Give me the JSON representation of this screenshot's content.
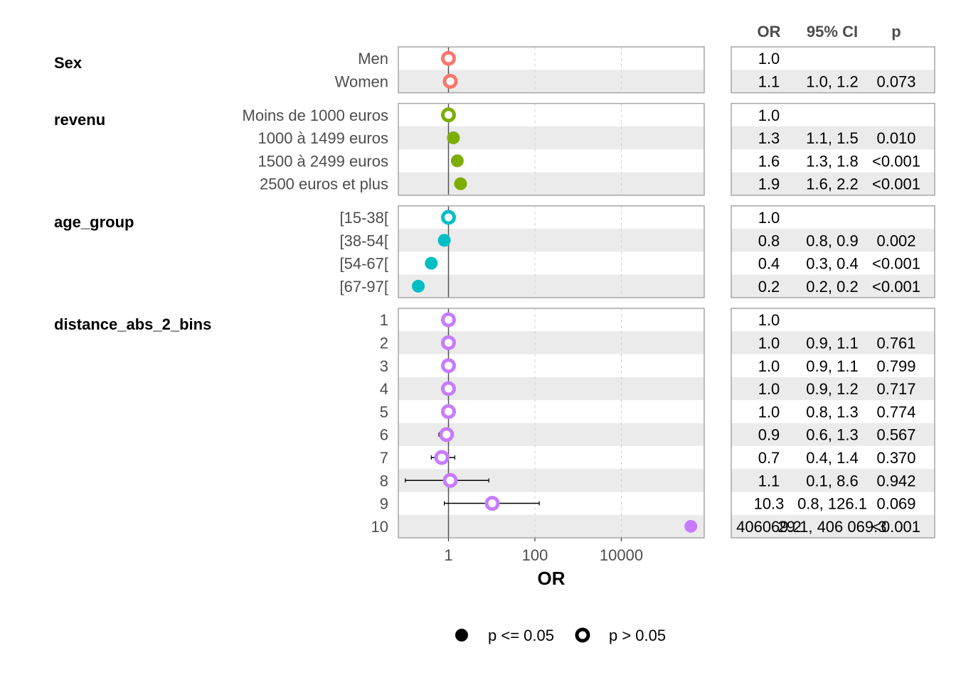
{
  "chart_data": {
    "type": "scatter",
    "subtype": "forest-plot",
    "x_scale": "log10",
    "xlabel": "OR",
    "x_ticks": [
      "1",
      "100",
      "10000"
    ],
    "x_tick_values": [
      1,
      100,
      10000
    ],
    "xlim": [
      0.1,
      1000000
    ],
    "reference_line": 1,
    "grid": "vertical dashed at major ticks",
    "table_headers": {
      "or": "OR",
      "ci": "95% CI",
      "p": "p"
    },
    "colors": {
      "Sex": "#F8766D",
      "revenu": "#7CAE00",
      "age_group": "#00BFC4",
      "distance_abs_2_bins": "#C77CFF"
    },
    "groups": [
      {
        "name": "Sex",
        "rows": [
          {
            "label": "Men",
            "or": 1.0,
            "lo": null,
            "hi": null,
            "or_text": "1.0",
            "ci_text": "",
            "p_text": "",
            "significant": false
          },
          {
            "label": "Women",
            "or": 1.1,
            "lo": 1.0,
            "hi": 1.2,
            "or_text": "1.1",
            "ci_text": "1.0, 1.2",
            "p_text": "0.073",
            "significant": false
          }
        ]
      },
      {
        "name": "revenu",
        "rows": [
          {
            "label": "Moins de 1000 euros",
            "or": 1.0,
            "lo": null,
            "hi": null,
            "or_text": "1.0",
            "ci_text": "",
            "p_text": "",
            "significant": false
          },
          {
            "label": "1000 à 1499 euros",
            "or": 1.3,
            "lo": 1.1,
            "hi": 1.5,
            "or_text": "1.3",
            "ci_text": "1.1, 1.5",
            "p_text": "0.010",
            "significant": true
          },
          {
            "label": "1500 à 2499 euros",
            "or": 1.6,
            "lo": 1.3,
            "hi": 1.8,
            "or_text": "1.6",
            "ci_text": "1.3, 1.8",
            "p_text": "<0.001",
            "significant": true
          },
          {
            "label": "2500 euros et plus",
            "or": 1.9,
            "lo": 1.6,
            "hi": 2.2,
            "or_text": "1.9",
            "ci_text": "1.6, 2.2",
            "p_text": "<0.001",
            "significant": true
          }
        ]
      },
      {
        "name": "age_group",
        "rows": [
          {
            "label": "[15-38[",
            "or": 1.0,
            "lo": null,
            "hi": null,
            "or_text": "1.0",
            "ci_text": "",
            "p_text": "",
            "significant": false
          },
          {
            "label": "[38-54[",
            "or": 0.8,
            "lo": 0.8,
            "hi": 0.9,
            "or_text": "0.8",
            "ci_text": "0.8, 0.9",
            "p_text": "0.002",
            "significant": true
          },
          {
            "label": "[54-67[",
            "or": 0.4,
            "lo": 0.3,
            "hi": 0.4,
            "or_text": "0.4",
            "ci_text": "0.3, 0.4",
            "p_text": "<0.001",
            "significant": true
          },
          {
            "label": "[67-97[",
            "or": 0.2,
            "lo": 0.2,
            "hi": 0.2,
            "or_text": "0.2",
            "ci_text": "0.2, 0.2",
            "p_text": "<0.001",
            "significant": true
          }
        ]
      },
      {
        "name": "distance_abs_2_bins",
        "rows": [
          {
            "label": "1",
            "or": 1.0,
            "lo": null,
            "hi": null,
            "or_text": "1.0",
            "ci_text": "",
            "p_text": "",
            "significant": false
          },
          {
            "label": "2",
            "or": 1.0,
            "lo": 0.9,
            "hi": 1.1,
            "or_text": "1.0",
            "ci_text": "0.9, 1.1",
            "p_text": "0.761",
            "significant": false
          },
          {
            "label": "3",
            "or": 1.0,
            "lo": 0.9,
            "hi": 1.1,
            "or_text": "1.0",
            "ci_text": "0.9, 1.1",
            "p_text": "0.799",
            "significant": false
          },
          {
            "label": "4",
            "or": 1.0,
            "lo": 0.9,
            "hi": 1.2,
            "or_text": "1.0",
            "ci_text": "0.9, 1.2",
            "p_text": "0.717",
            "significant": false
          },
          {
            "label": "5",
            "or": 1.0,
            "lo": 0.8,
            "hi": 1.3,
            "or_text": "1.0",
            "ci_text": "0.8, 1.3",
            "p_text": "0.774",
            "significant": false
          },
          {
            "label": "6",
            "or": 0.9,
            "lo": 0.6,
            "hi": 1.3,
            "or_text": "0.9",
            "ci_text": "0.6, 1.3",
            "p_text": "0.567",
            "significant": false
          },
          {
            "label": "7",
            "or": 0.7,
            "lo": 0.4,
            "hi": 1.4,
            "or_text": "0.7",
            "ci_text": "0.4, 1.4",
            "p_text": "0.370",
            "significant": false
          },
          {
            "label": "8",
            "or": 1.1,
            "lo": 0.1,
            "hi": 8.6,
            "or_text": "1.1",
            "ci_text": "0.1, 8.6",
            "p_text": "0.942",
            "significant": false
          },
          {
            "label": "9",
            "or": 10.3,
            "lo": 0.8,
            "hi": 126.1,
            "or_text": "10.3",
            "ci_text": "0.8, 126.1",
            "p_text": "0.069",
            "significant": false
          },
          {
            "label": "10",
            "or": 406000,
            "lo": null,
            "hi": null,
            "or_text": "406069.2",
            "ci_text": "29.1, 406 069.3",
            "p_text": "<0.001",
            "significant": true,
            "overplotted": true
          }
        ]
      }
    ],
    "legend": {
      "position": "bottom",
      "items": [
        {
          "label": "p <= 0.05",
          "filled": true
        },
        {
          "label": "p > 0.05",
          "filled": false
        }
      ]
    }
  }
}
